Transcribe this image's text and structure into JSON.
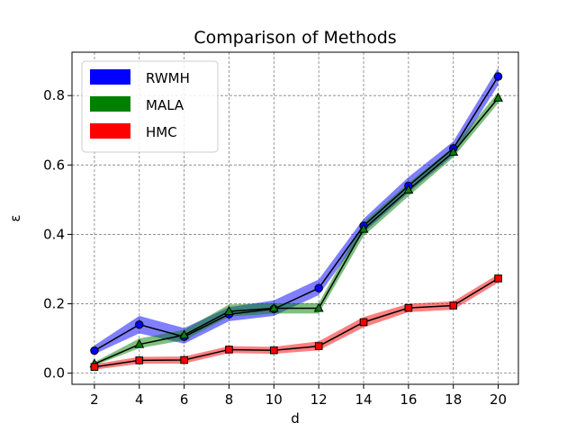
{
  "chart_data": {
    "type": "line",
    "title": "Comparison of Methods",
    "xlabel": "d",
    "ylabel": "ε",
    "x": [
      2,
      4,
      6,
      8,
      10,
      12,
      14,
      16,
      18,
      20
    ],
    "x_ticks": [
      2,
      4,
      6,
      8,
      10,
      12,
      14,
      16,
      18,
      20
    ],
    "xlim": [
      1.0,
      20.9
    ],
    "y_ticks": [
      "0.0",
      "0.2",
      "0.4",
      "0.6",
      "0.8"
    ],
    "ylim": [
      -0.032,
      0.925
    ],
    "grid": true,
    "legend_position": "upper-left",
    "series": [
      {
        "name": "RWMH",
        "color": "#0000ff",
        "marker": "circle",
        "values": [
          0.065,
          0.14,
          0.105,
          0.17,
          0.185,
          0.245,
          0.425,
          0.54,
          0.648,
          0.855
        ],
        "lower": [
          0.055,
          0.115,
          0.085,
          0.15,
          0.165,
          0.225,
          0.405,
          0.52,
          0.628,
          0.83
        ],
        "upper": [
          0.08,
          0.165,
          0.13,
          0.19,
          0.21,
          0.27,
          0.445,
          0.565,
          0.668,
          0.88
        ]
      },
      {
        "name": "MALA",
        "color": "#008000",
        "marker": "triangle",
        "values": [
          0.027,
          0.083,
          0.11,
          0.178,
          0.187,
          0.187,
          0.415,
          0.528,
          0.637,
          0.793
        ],
        "lower": [
          0.022,
          0.072,
          0.095,
          0.163,
          0.172,
          0.172,
          0.395,
          0.51,
          0.622,
          0.778
        ],
        "upper": [
          0.032,
          0.1,
          0.125,
          0.198,
          0.202,
          0.202,
          0.435,
          0.548,
          0.652,
          0.81
        ]
      },
      {
        "name": "HMC",
        "color": "#ff0000",
        "marker": "square",
        "values": [
          0.018,
          0.037,
          0.038,
          0.068,
          0.066,
          0.078,
          0.147,
          0.188,
          0.195,
          0.273
        ],
        "lower": [
          0.01,
          0.027,
          0.028,
          0.058,
          0.056,
          0.066,
          0.132,
          0.176,
          0.183,
          0.261
        ],
        "upper": [
          0.026,
          0.047,
          0.048,
          0.078,
          0.076,
          0.092,
          0.162,
          0.2,
          0.207,
          0.285
        ]
      }
    ]
  }
}
